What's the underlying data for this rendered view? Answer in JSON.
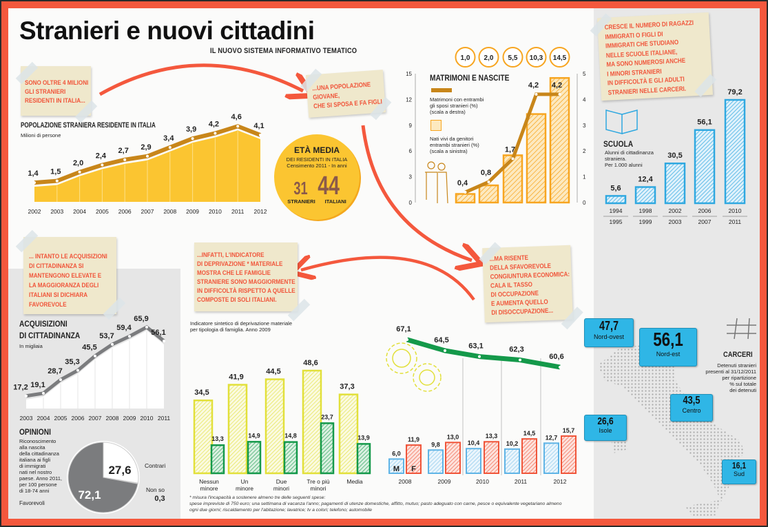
{
  "title": "Stranieri e nuovi cittadini",
  "subtitle": "IL NUOVO SISTEMA INFORMATIVO TEMATICO",
  "notes": {
    "residenti": [
      "SONO OLTRE 4 MILIONI",
      "GLI STRANIERI",
      "RESIDENTI IN ITALIA..."
    ],
    "giovane": [
      "...UNA POPOLAZIONE",
      "GIOVANE,",
      "CHE SI SPOSA E FA FIGLI"
    ],
    "scuola": [
      "CRESCE IL NUMERO DI RAGAZZI",
      "IMMIGRATI O FIGLI DI",
      "IMMIGRATI CHE STUDIANO",
      "NELLE SCUOLE ITALIANE,",
      "MA SONO NUMEROSI ANCHE",
      "I MINORI STRANIERI",
      "IN DIFFICOLTÀ E GLI ADULTI",
      "STRANIERI NELLE CARCERI."
    ],
    "acquisizioni": [
      "... INTANTO LE ACQUISIZIONI",
      "DI CITTADINANZA SI",
      "MANTENGONO ELEVATE E",
      "LA MAGGIORANZA DEGLI",
      "ITALIANI SI DICHIARA",
      "FAVOREVOLE"
    ],
    "deprivazione": [
      "...INFATTI, L'INDICATORE",
      "DI DEPRIVAZIONE * MATERIALE",
      "MOSTRA CHE LE FAMIGLIE",
      "STRANIERE SONO MAGGIORMENTE",
      "IN DIFFICOLTÀ RISPETTO A QUELLE",
      "COMPOSTE DI SOLI ITALIANI."
    ],
    "congiuntura": [
      "...MA RISENTE",
      "DELLA SFAVOREVOLE",
      "CONGIUNTURA ECONOMICA:",
      "CALA IL TASSO",
      "DI OCCUPAZIONE",
      "E AUMENTA QUELLO",
      "DI DISOCCUPAZIONE..."
    ]
  },
  "eta_media": {
    "title": "ETÀ MEDIA",
    "subtitle1": "DEI RESIDENTI IN ITALIA",
    "subtitle2": "Censimento 2011 - In anni",
    "stranieri_value": "31",
    "italiani_value": "44",
    "stranieri_label": "STRANIERI",
    "italiani_label": "ITALIANI"
  },
  "footnote": {
    "line1": "* misura l'incapacità a sostenere almeno tre delle seguenti spese:",
    "line2": "spese impreviste di 750 euro; una settimana di vacanza l'anno; pagamenti di utenze domestiche, affitto, mutuo; pasto adeguato con carne, pesce o equivalente vegetariano almeno",
    "line3": "ogni due giorni; riscaldamento per l'abitazione; lavatrice; tv a colori; telefono; automobile"
  },
  "colors": {
    "frame": "#f4583d",
    "note_text": "#f0553a",
    "population": "#fbc531",
    "population_line": "#c8861a",
    "births": "#f7a520",
    "school": "#2fa8e0",
    "green": "#14994a",
    "yellow": "#e2e03a",
    "male": "#5fb4e6",
    "female": "#f0553a",
    "prison_bubble": "#2fb6e6",
    "pie_dark": "#7b7c7e"
  },
  "chart_data": [
    {
      "id": "popolazione",
      "type": "area",
      "title": "POPOLAZIONE STRANIERA RESIDENTE IN ITALIA",
      "ylabel": "Milioni di persone",
      "x": [
        "2002",
        "2003",
        "2004",
        "2005",
        "2006",
        "2007",
        "2008",
        "2009",
        "2010",
        "2011",
        "2012"
      ],
      "values": [
        1.4,
        1.5,
        2.0,
        2.4,
        2.7,
        2.9,
        3.4,
        3.9,
        4.2,
        4.6,
        4.1
      ],
      "grid": false
    },
    {
      "id": "matrimoni",
      "type": "bar+line",
      "title": "MATRIMONI E NASCITE",
      "yticks_left": [
        0,
        3,
        6,
        9,
        12,
        15
      ],
      "yticks_right": [
        0,
        1,
        2,
        3,
        4,
        5
      ],
      "ylim_left": [
        0,
        15
      ],
      "ylim_right": [
        0,
        5
      ],
      "series": [
        {
          "name": "Nati vivi da genitori entrambi stranieri (%) (scala a sinistra)",
          "legend": [
            "Nati vivi da genitori",
            "entrambi stranieri (%)",
            "(scala a sinistra)"
          ],
          "kind": "bar",
          "values": [
            1.0,
            2.0,
            5.5,
            10.3,
            14.5
          ]
        },
        {
          "name": "Matrimoni con entrambi gli sposi stranieri (%) (scala a destra)",
          "legend": [
            "Matrimoni con entrambi",
            "gli sposi stranieri (%)",
            "(scala a destra)"
          ],
          "kind": "line",
          "values": [
            0.4,
            0.8,
            1.7,
            4.2,
            4.2
          ]
        }
      ]
    },
    {
      "id": "scuola",
      "type": "bar",
      "title": "SCUOLA",
      "ylabel": [
        "Alunni di cittadinanza",
        "straniera.",
        "Per 1.000 alunni"
      ],
      "categories": [
        [
          "1994",
          "1995"
        ],
        [
          "1998",
          "1999"
        ],
        [
          "2002",
          "2003"
        ],
        [
          "2006",
          "2007"
        ],
        [
          "2010",
          "2011"
        ]
      ],
      "values": [
        5.6,
        12.4,
        30.5,
        56.1,
        79.2
      ]
    },
    {
      "id": "acquisizioni",
      "type": "area",
      "title": [
        "ACQUISIZIONI",
        "DI CITTADINANZA"
      ],
      "ylabel": "In migliaia",
      "x": [
        "2003",
        "2004",
        "2005",
        "2006",
        "2007",
        "2008",
        "2009",
        "2010",
        "2011"
      ],
      "values": [
        17.2,
        19.1,
        28.7,
        35.3,
        45.5,
        53.7,
        59.4,
        65.9,
        56.1
      ]
    },
    {
      "id": "opinioni",
      "type": "pie",
      "title": "OPINIONI",
      "description": [
        "Riconoscimento",
        "alla nascita",
        "della cittadinanza",
        "italiana ai figli",
        "di immigrati",
        "nati nel nostro",
        "paese. Anno 2011,",
        "per 100 persone",
        "di 18-74 anni"
      ],
      "slices": [
        {
          "label": "Contrari",
          "value": 27.6
        },
        {
          "label": "Non so",
          "value": 0.3
        },
        {
          "label": "Favorevoli",
          "value": 72.1
        }
      ]
    },
    {
      "id": "deprivazione",
      "type": "bar",
      "title": [
        "Indicatore sintetico di deprivazione materiale",
        "per tipologia di famiglia. Anno 2009"
      ],
      "categories": [
        [
          "Nessun",
          "minore"
        ],
        [
          "Un",
          "minore"
        ],
        [
          "Due",
          "minori"
        ],
        [
          "Tre o più",
          "minori"
        ],
        [
          "Media",
          ""
        ]
      ],
      "series": [
        {
          "values": [
            34.5,
            41.9,
            44.5,
            48.6,
            37.3
          ]
        },
        {
          "values": [
            13.3,
            14.9,
            14.8,
            23.7,
            13.9
          ]
        }
      ]
    },
    {
      "id": "occupazione",
      "type": "line",
      "x": [
        "2008",
        "2009",
        "2010",
        "2011",
        "2012"
      ],
      "values": [
        67.1,
        64.5,
        63.1,
        62.3,
        60.6
      ]
    },
    {
      "id": "disoccupazione",
      "type": "bar",
      "categories": [
        "2008",
        "2009",
        "2010",
        "2011",
        "2012"
      ],
      "series": [
        {
          "name": "M",
          "values": [
            6.0,
            9.8,
            10.4,
            10.2,
            12.7
          ]
        },
        {
          "name": "F",
          "values": [
            11.9,
            13.0,
            13.3,
            14.5,
            15.7
          ]
        }
      ]
    },
    {
      "id": "carceri",
      "type": "map",
      "title": "CARCERI",
      "description": [
        "Detenuti stranieri",
        "presenti al 31/12/2011",
        "per ripartizione",
        "% sul totale",
        "dei detenuti"
      ],
      "regions": [
        {
          "label": "Nord-ovest",
          "value": "47,7"
        },
        {
          "label": "Nord-est",
          "value": "56,1"
        },
        {
          "label": "Centro",
          "value": "43,5"
        },
        {
          "label": "Isole",
          "value": "26,6"
        },
        {
          "label": "Sud",
          "value": "16,1"
        }
      ]
    }
  ]
}
